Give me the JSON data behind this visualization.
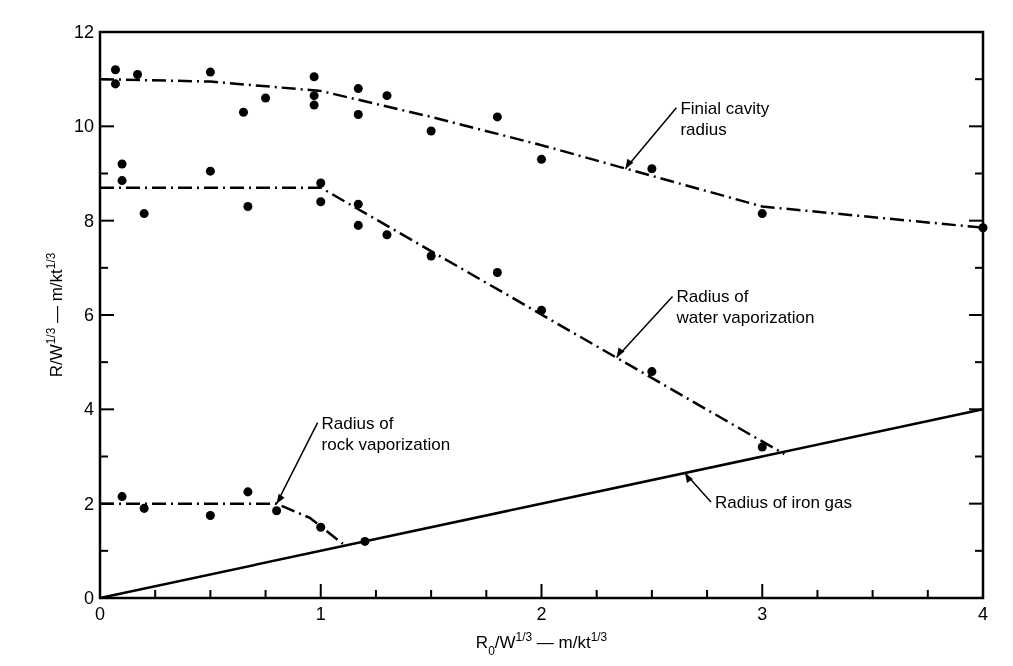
{
  "chart_data": {
    "type": "scatter",
    "xlabel": "R$_{0}$/W$^{1/3}$ — m/kt$^{1/3}$",
    "ylabel": "R/W$^{1/3}$ — m/kt$^{1/3}$",
    "xlim": [
      0,
      4
    ],
    "ylim": [
      0,
      12
    ],
    "xticks": [
      0,
      {
        "value": 0.25,
        "label": null
      },
      {
        "value": 0.5,
        "label": null
      },
      {
        "value": 0.75,
        "label": null
      },
      1,
      {
        "value": 1.25,
        "label": null
      },
      {
        "value": 1.5,
        "label": null
      },
      {
        "value": 1.75,
        "label": null
      },
      2,
      {
        "value": 2.25,
        "label": null
      },
      {
        "value": 2.5,
        "label": null
      },
      {
        "value": 2.75,
        "label": null
      },
      3,
      {
        "value": 3.25,
        "label": null
      },
      {
        "value": 3.5,
        "label": null
      },
      {
        "value": 3.75,
        "label": null
      },
      4
    ],
    "yticks": [
      0,
      {
        "value": 1,
        "label": null
      },
      2,
      {
        "value": 3,
        "label": null
      },
      4,
      {
        "value": 5,
        "label": null
      },
      6,
      {
        "value": 7,
        "label": null
      },
      8,
      {
        "value": 9,
        "label": null
      },
      10,
      {
        "value": 11,
        "label": null
      },
      12
    ],
    "grid": false,
    "marker": "circle",
    "series": [
      {
        "color": "#000000",
        "x": [
          0.07,
          0.07,
          0.17,
          0.5,
          0.65,
          0.75,
          0.97,
          0.97,
          0.97,
          1.17,
          1.17,
          1.3,
          1.5,
          1.8,
          2.0,
          2.5,
          3.0,
          4.0
        ],
        "values": [
          11.2,
          10.9,
          11.1,
          11.15,
          10.3,
          10.6,
          11.05,
          10.65,
          10.45,
          10.8,
          10.25,
          10.65,
          9.9,
          10.2,
          9.3,
          9.1,
          8.15,
          7.85
        ]
      },
      {
        "color": "#000000",
        "x": [
          0.1,
          0.1,
          0.2,
          0.5,
          0.67,
          1.0,
          1.0,
          1.17,
          1.17,
          1.3,
          1.5,
          1.8,
          2.0,
          2.5,
          3.0
        ],
        "values": [
          9.2,
          8.85,
          8.15,
          9.05,
          8.3,
          8.8,
          8.4,
          8.35,
          7.9,
          7.7,
          7.25,
          6.9,
          6.1,
          4.8,
          3.2
        ]
      },
      {
        "color": "#000000",
        "x": [
          0.1,
          0.2,
          0.5,
          0.67,
          0.8,
          1.0,
          1.2
        ],
        "values": [
          2.15,
          1.9,
          1.75,
          2.25,
          1.85,
          1.5,
          1.2
        ]
      },
      {
        "type": "line",
        "color": "#000000",
        "line_style": "dashed",
        "marker": "none",
        "x": [
          0,
          0.5,
          1,
          1.5,
          2,
          2.5,
          3,
          4
        ],
        "values": [
          11,
          10.95,
          10.75,
          10.2,
          9.6,
          8.95,
          8.3,
          7.85
        ]
      },
      {
        "type": "line",
        "color": "#000000",
        "line_style": "dashed",
        "marker": "none",
        "x": [
          0,
          1,
          3.1
        ],
        "values": [
          8.7,
          8.7,
          3.05
        ]
      },
      {
        "type": "line",
        "color": "#000000",
        "line_style": "dashed",
        "marker": "none",
        "x": [
          0,
          0.8,
          0.95,
          1.1
        ],
        "values": [
          2,
          2,
          1.7,
          1.15
        ]
      },
      {
        "type": "line",
        "color": "#000000",
        "line_style": "solid",
        "marker": "none",
        "x": [
          0,
          4
        ],
        "values": [
          0,
          4
        ]
      }
    ],
    "annotations": [
      {
        "text": "Finial cavity\nradius",
        "x": 2.38,
        "y": 9.1
      },
      {
        "text": "Radius of\nwater vaporization",
        "x": 2.34,
        "y": 5.1
      },
      {
        "text": "Radius of\nrock vaporization",
        "x": 0.8,
        "y": 2.0
      },
      {
        "text": "Radius of iron gas",
        "x": 2.65,
        "y": 2.65
      }
    ]
  }
}
